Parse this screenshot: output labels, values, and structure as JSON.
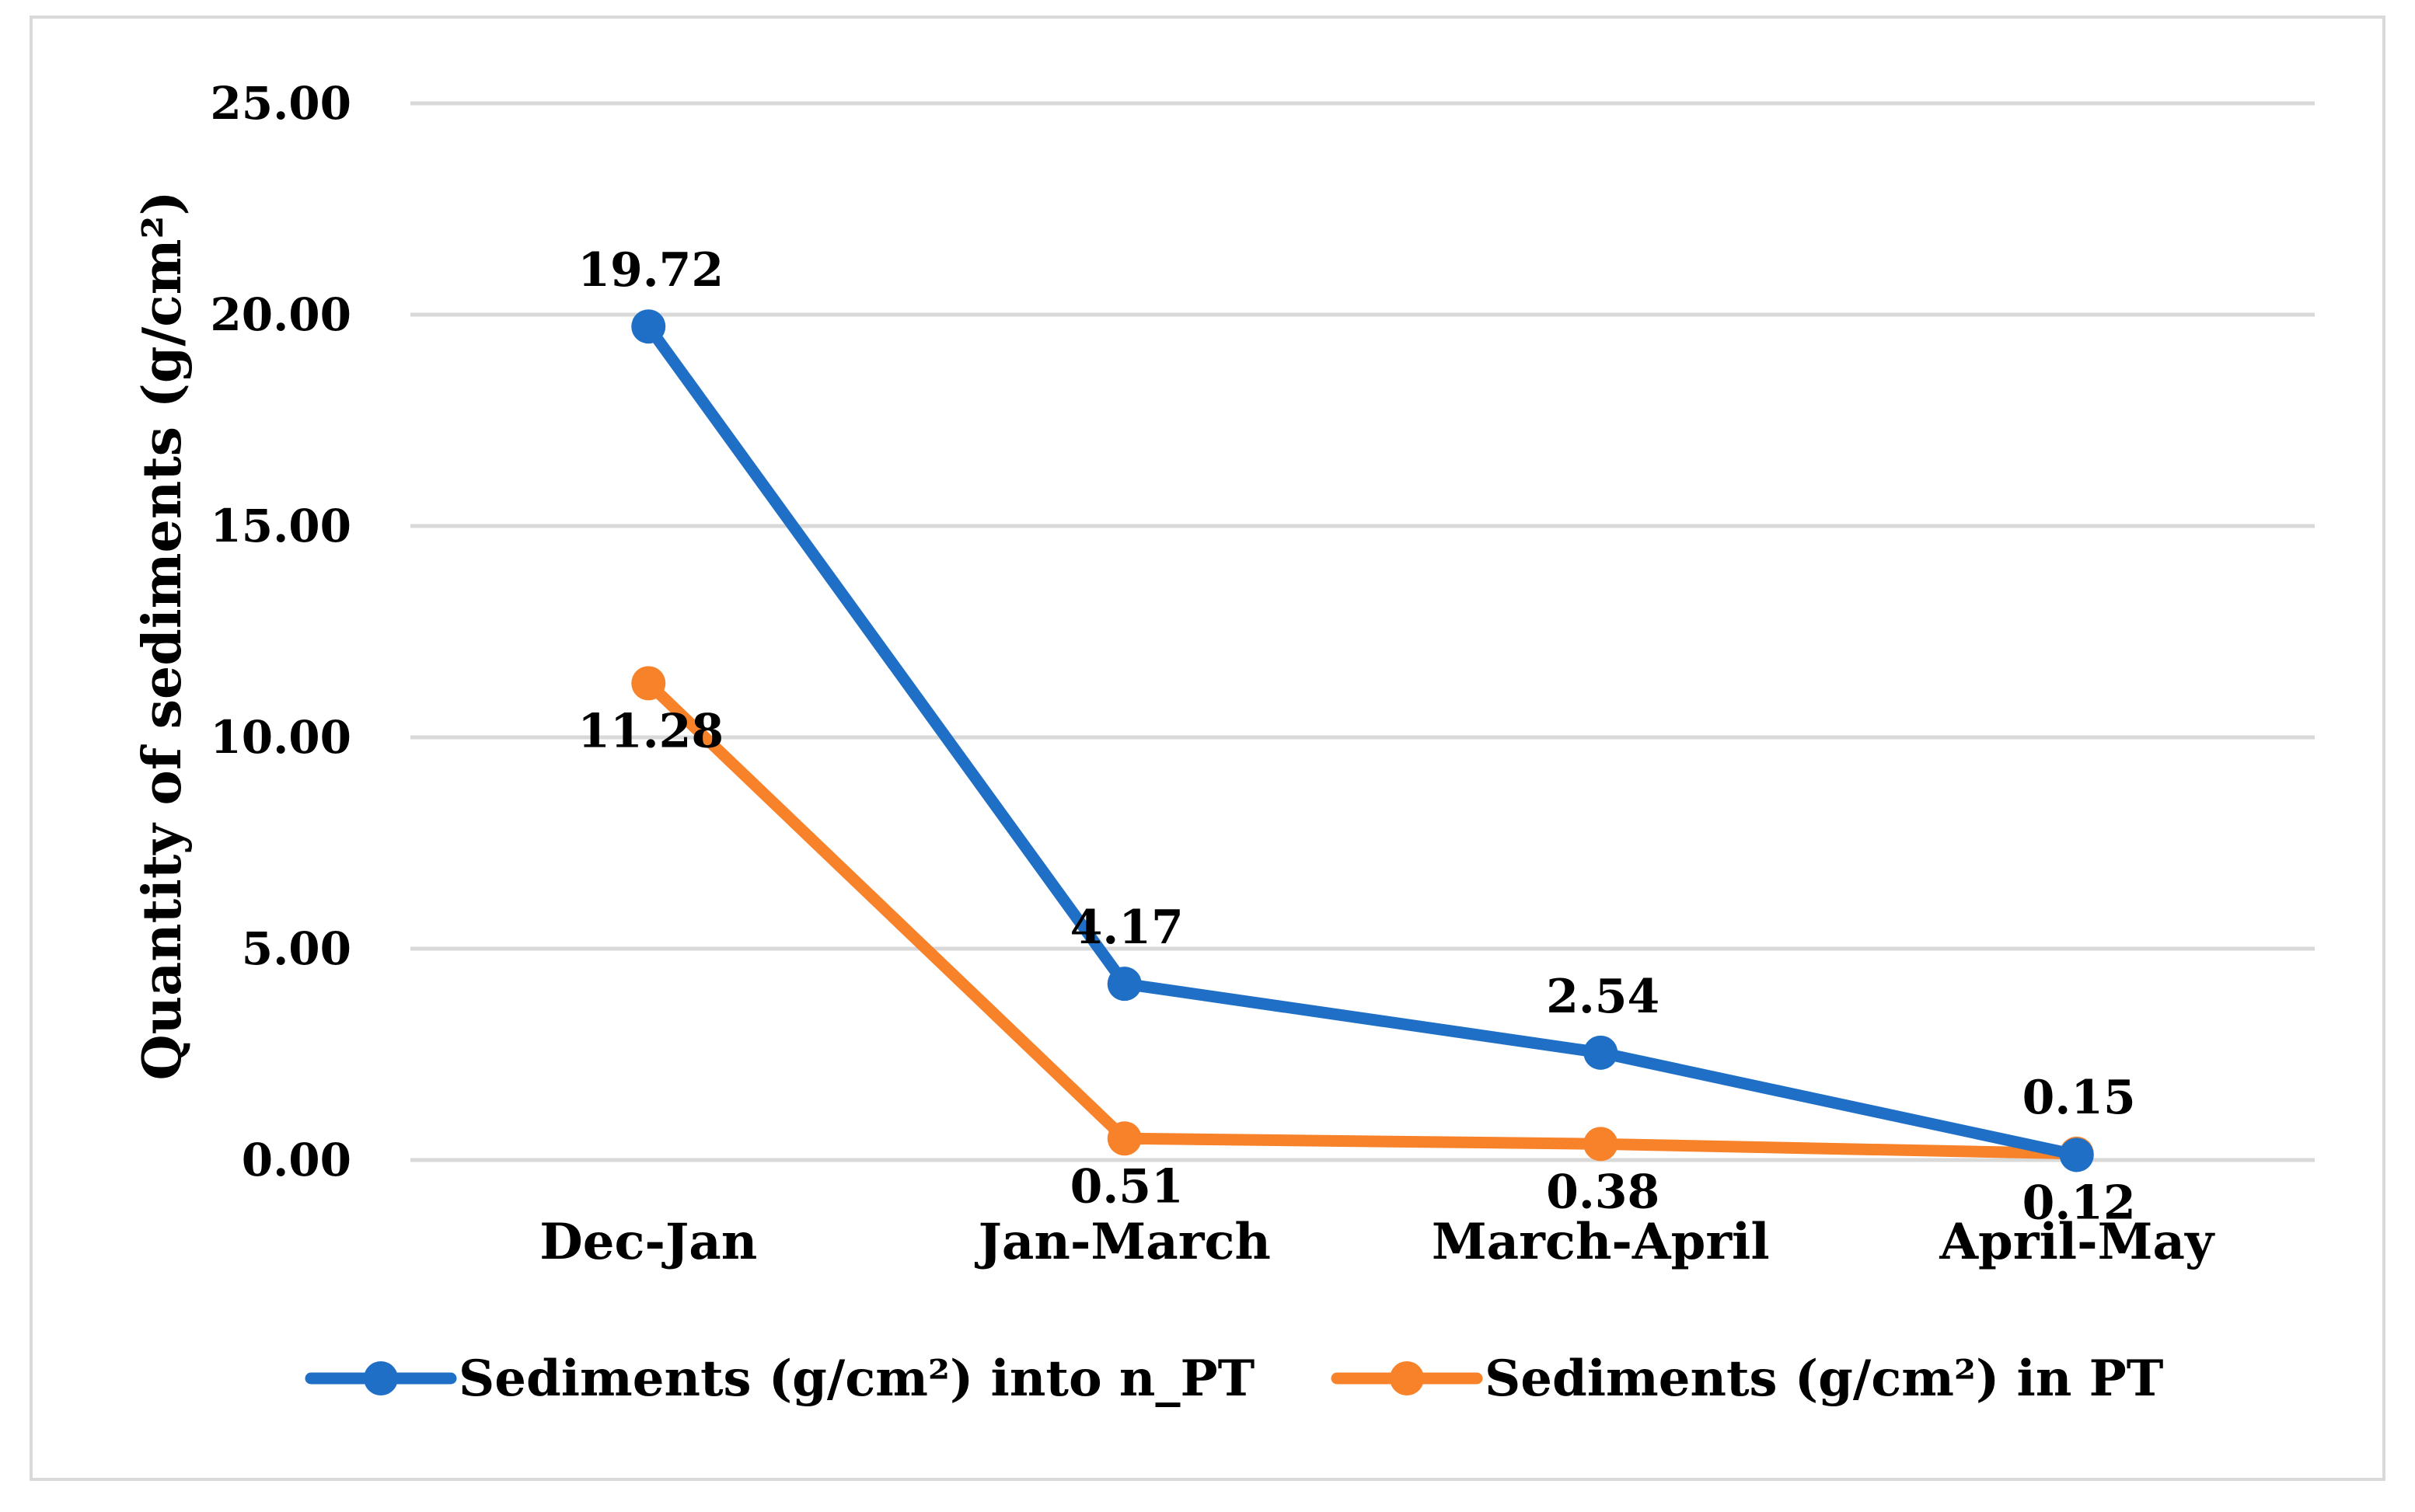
{
  "chart_data": {
    "type": "line",
    "title": "",
    "xlabel": "",
    "ylabel": "Quantity of sediments (g/cm²)",
    "ylim": [
      0,
      25
    ],
    "y_ticks": [
      "0.00",
      "5.00",
      "10.00",
      "15.00",
      "20.00",
      "25.00"
    ],
    "y_tick_values": [
      0,
      5,
      10,
      15,
      20,
      25
    ],
    "grid": true,
    "legend_position": "bottom",
    "categories": [
      "Dec-Jan",
      "Jan-March",
      "March-April",
      "April-May"
    ],
    "series": [
      {
        "name": "Sediments (g/cm²) into n_PT",
        "color": "#1f6fc6",
        "values": [
          19.72,
          4.17,
          2.54,
          0.12
        ],
        "labels": [
          "19.72",
          "4.17",
          "2.54",
          "0.12"
        ],
        "label_side": [
          "above",
          "above",
          "above",
          "below"
        ]
      },
      {
        "name": "Sediments (g/cm²) in PT",
        "color": "#f7822a",
        "values": [
          11.28,
          0.51,
          0.38,
          0.15
        ],
        "labels": [
          "11.28",
          "0.51",
          "0.38",
          "0.15"
        ],
        "label_side": [
          "below",
          "below",
          "below",
          "above"
        ]
      }
    ]
  }
}
